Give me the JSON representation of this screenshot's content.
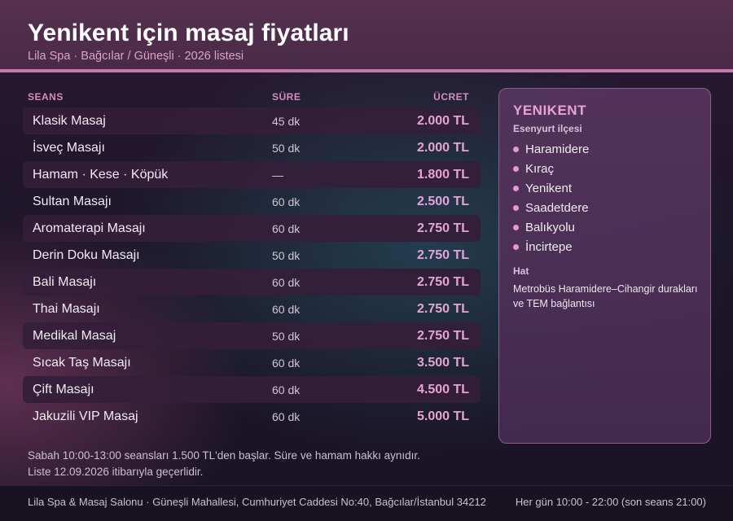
{
  "header": {
    "title": "Yenikent için masaj fiyatları",
    "subtitle": "Lila Spa · Bağcılar / Güneşli · 2026 listesi"
  },
  "table": {
    "columns": [
      "SEANS",
      "SÜRE",
      "ÜCRET"
    ],
    "rows": [
      {
        "name": "Klasik Masaj",
        "duration": "45 dk",
        "price": "2.000 TL"
      },
      {
        "name": "İsveç Masajı",
        "duration": "50 dk",
        "price": "2.000 TL"
      },
      {
        "name": "Hamam · Kese · Köpük",
        "duration": "—",
        "price": "1.800 TL"
      },
      {
        "name": "Sultan Masajı",
        "duration": "60 dk",
        "price": "2.500 TL"
      },
      {
        "name": "Aromaterapi Masajı",
        "duration": "60 dk",
        "price": "2.750 TL"
      },
      {
        "name": "Derin Doku Masajı",
        "duration": "50 dk",
        "price": "2.750 TL"
      },
      {
        "name": "Bali Masajı",
        "duration": "60 dk",
        "price": "2.750 TL"
      },
      {
        "name": "Thai Masajı",
        "duration": "60 dk",
        "price": "2.750 TL"
      },
      {
        "name": "Medikal Masaj",
        "duration": "50 dk",
        "price": "2.750 TL"
      },
      {
        "name": "Sıcak Taş Masajı",
        "duration": "60 dk",
        "price": "3.500 TL"
      },
      {
        "name": "Çift Masajı",
        "duration": "60 dk",
        "price": "4.500 TL"
      },
      {
        "name": "Jakuzili VIP Masaj",
        "duration": "60 dk",
        "price": "5.000 TL"
      }
    ]
  },
  "notes": {
    "line1": "Sabah 10:00-13:00 seansları 1.500 TL'den başlar. Süre ve hamam hakkı aynıdır.",
    "line2": "Liste 12.09.2026 itibarıyla geçerlidir."
  },
  "panel": {
    "title": "YENIKENT",
    "district": "Esenyurt ilçesi",
    "neighborhoods": [
      "Haramidere",
      "Kıraç",
      "Yenikent",
      "Saadetdere",
      "Balıkyolu",
      "İncirtepe"
    ],
    "hat_label": "Hat",
    "hat_text": "Metrobüs Haramidere–Cihangir durakları ve TEM bağlantısı"
  },
  "footer": {
    "address": "Lila Spa & Masaj Salonu · Güneşli Mahallesi, Cumhuriyet Caddesi No:40, Bağcılar/İstanbul 34212",
    "hours": "Her gün 10:00 - 22:00 (son seans 21:00)"
  },
  "colors": {
    "accent": "#e6a3d3",
    "header_bg": "#4e2c4b",
    "header_rule": "#c47aac",
    "row_shade": "#341e3a"
  }
}
